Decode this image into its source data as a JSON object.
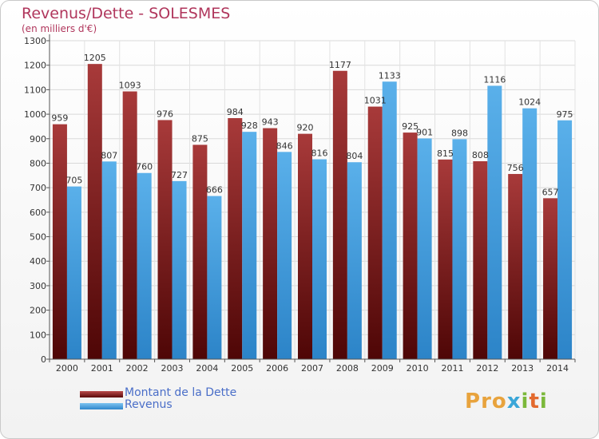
{
  "chart": {
    "title": "Revenus/Dette - SOLESMES",
    "subtitle": "(en milliers d'€)"
  },
  "legend": {
    "dette": "Montant de la Dette",
    "revenus": "Revenus"
  },
  "logo": {
    "text": "Proxiti",
    "letters": [
      "P",
      "r",
      "o",
      "x",
      "i",
      "t",
      "i"
    ],
    "colors": [
      "#e8a33d",
      "#e8a33d",
      "#e8a33d",
      "#3aa6d8",
      "#7bb83a",
      "#e36a2e",
      "#7bb83a"
    ]
  },
  "colors": {
    "dette_light": "#b94a4a",
    "dette_dark": "#5a0a0a",
    "revenus_light": "#7cc3f0",
    "revenus_dark": "#2e86cc",
    "title": "#b0365c"
  },
  "chart_data": {
    "type": "bar",
    "categories": [
      "2000",
      "2001",
      "2002",
      "2003",
      "2004",
      "2005",
      "2006",
      "2007",
      "2008",
      "2009",
      "2010",
      "2011",
      "2012",
      "2013",
      "2014"
    ],
    "series": [
      {
        "name": "Montant de la Dette",
        "values": [
          959,
          1205,
          1093,
          976,
          875,
          984,
          943,
          920,
          1177,
          1031,
          925,
          815,
          808,
          756,
          657
        ]
      },
      {
        "name": "Revenus",
        "values": [
          705,
          807,
          760,
          727,
          666,
          928,
          846,
          816,
          804,
          1133,
          901,
          898,
          1116,
          1024,
          975
        ]
      }
    ],
    "ylim": [
      0,
      1300
    ],
    "yticks": [
      0,
      100,
      200,
      300,
      400,
      500,
      600,
      700,
      800,
      900,
      1000,
      1100,
      1200,
      1300
    ],
    "grid": true
  }
}
